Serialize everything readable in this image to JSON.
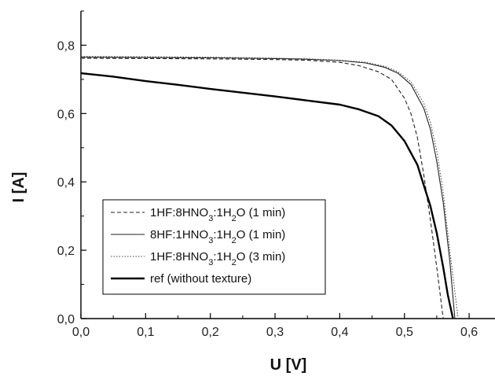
{
  "chart_data": {
    "type": "line",
    "xlabel": "U [V]",
    "ylabel": "I [A]",
    "xlim": [
      0,
      0.64
    ],
    "ylim": [
      0,
      0.9
    ],
    "xticks": [
      "0,0",
      "0,1",
      "0,2",
      "0,3",
      "0,4",
      "0,5",
      "0,6"
    ],
    "yticks": [
      "0,0",
      "0,2",
      "0,4",
      "0,6",
      "0,8"
    ],
    "grid": false,
    "legend_position": "bottom-left",
    "series": [
      {
        "name": "1HF:8HNO3:1H2O (1 min)",
        "style": "dashed",
        "x": [
          0,
          0.1,
          0.2,
          0.3,
          0.35,
          0.4,
          0.43,
          0.46,
          0.48,
          0.5,
          0.51,
          0.52,
          0.53,
          0.54,
          0.55,
          0.56
        ],
        "y": [
          0.762,
          0.761,
          0.76,
          0.758,
          0.756,
          0.75,
          0.74,
          0.722,
          0.7,
          0.645,
          0.6,
          0.53,
          0.42,
          0.29,
          0.15,
          0.0
        ]
      },
      {
        "name": "8HF:1HNO3:1H2O (1 min)",
        "style": "solid",
        "x": [
          0,
          0.1,
          0.2,
          0.3,
          0.35,
          0.4,
          0.44,
          0.47,
          0.49,
          0.51,
          0.53,
          0.54,
          0.55,
          0.56,
          0.57,
          0.578
        ],
        "y": [
          0.765,
          0.764,
          0.763,
          0.761,
          0.759,
          0.755,
          0.748,
          0.735,
          0.718,
          0.685,
          0.615,
          0.555,
          0.46,
          0.34,
          0.17,
          0.0
        ]
      },
      {
        "name": "1HF:8HNO3:1H2O (3 min)",
        "style": "dotted",
        "x": [
          0,
          0.1,
          0.2,
          0.3,
          0.35,
          0.4,
          0.44,
          0.47,
          0.49,
          0.51,
          0.53,
          0.54,
          0.55,
          0.56,
          0.57,
          0.583
        ],
        "y": [
          0.767,
          0.766,
          0.765,
          0.762,
          0.76,
          0.756,
          0.75,
          0.738,
          0.722,
          0.693,
          0.63,
          0.575,
          0.49,
          0.37,
          0.2,
          0.0
        ]
      },
      {
        "name": "ref (without texture)",
        "style": "bold",
        "x": [
          0,
          0.05,
          0.1,
          0.15,
          0.2,
          0.25,
          0.3,
          0.35,
          0.4,
          0.43,
          0.46,
          0.48,
          0.5,
          0.52,
          0.53,
          0.54,
          0.55,
          0.56,
          0.567,
          0.575
        ],
        "y": [
          0.718,
          0.708,
          0.695,
          0.684,
          0.672,
          0.661,
          0.65,
          0.638,
          0.626,
          0.612,
          0.592,
          0.565,
          0.52,
          0.45,
          0.39,
          0.33,
          0.25,
          0.15,
          0.07,
          0.0
        ]
      }
    ]
  }
}
